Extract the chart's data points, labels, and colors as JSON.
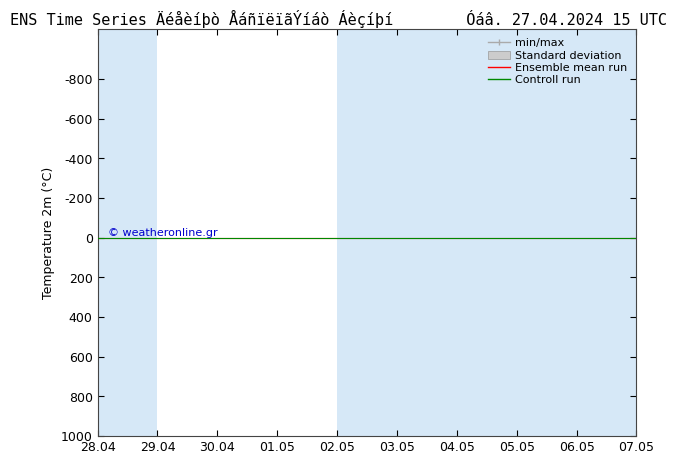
{
  "title_left": "ENS Time Series Äéåèíþò ÅáñïëïãÝíáò Áèçíþí",
  "title_right": "Óáâ. 27.04.2024 15 UTC",
  "ylabel": "Temperature 2m (°C)",
  "ylim_bottom": 1000,
  "ylim_top": -1050,
  "xlim_min": 0,
  "xlim_max": 9,
  "xtick_positions": [
    0,
    1,
    2,
    3,
    4,
    5,
    6,
    7,
    8,
    9
  ],
  "xtick_labels": [
    "28.04",
    "29.04",
    "30.04",
    "01.05",
    "02.05",
    "03.05",
    "04.05",
    "05.05",
    "06.05",
    "07.05"
  ],
  "ytick_positions": [
    -800,
    -600,
    -400,
    -200,
    0,
    200,
    400,
    600,
    800,
    1000
  ],
  "ytick_labels": [
    "-800",
    "-600",
    "-400",
    "-200",
    "0",
    "200",
    "400",
    "600",
    "800",
    "1000"
  ],
  "shaded_columns": [
    [
      0,
      1
    ],
    [
      4,
      5
    ],
    [
      5,
      6
    ],
    [
      6,
      9
    ]
  ],
  "shade_color": "#d6e8f7",
  "mean_run_color": "#ff0000",
  "control_run_color": "#008800",
  "mean_run_y": 0,
  "control_run_y": 0,
  "watermark": "© weatheronline.gr",
  "watermark_color": "#0000cc",
  "background_color": "#ffffff",
  "plot_bg_color": "#ffffff",
  "legend_labels": [
    "min/max",
    "Standard deviation",
    "Ensemble mean run",
    "Controll run"
  ],
  "title_fontsize": 11,
  "tick_fontsize": 9,
  "legend_fontsize": 8
}
